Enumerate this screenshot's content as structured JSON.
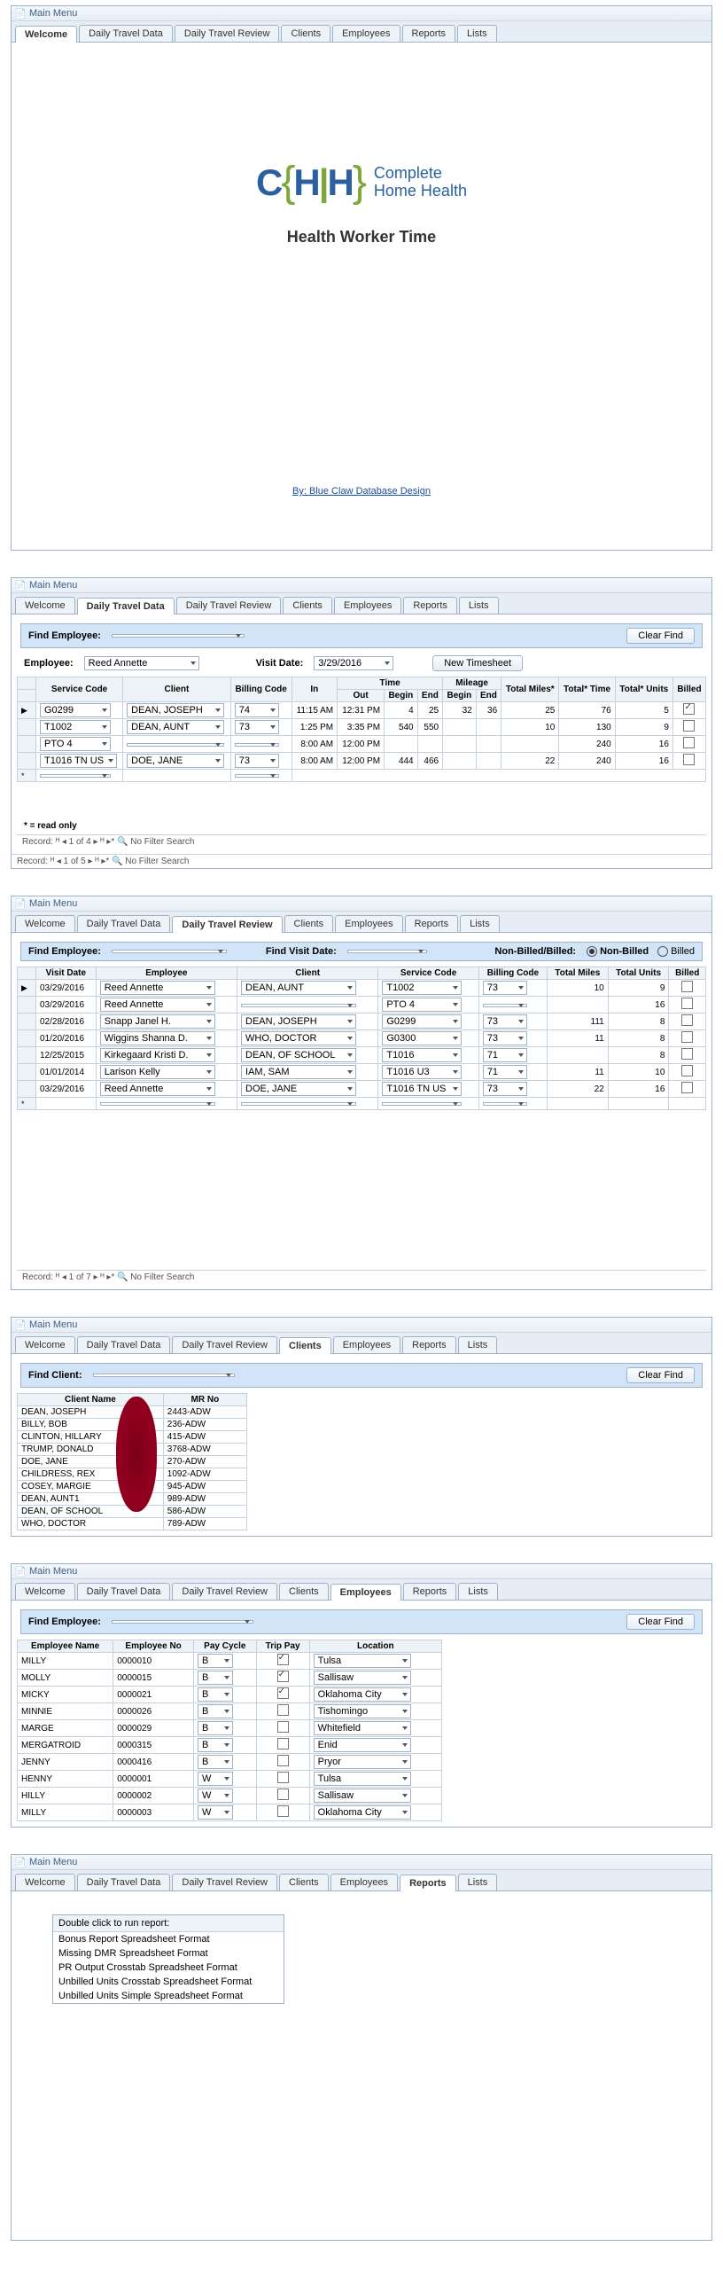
{
  "windowTitle": "Main Menu",
  "tabs": [
    "Welcome",
    "Daily Travel Data",
    "Daily Travel Review",
    "Clients",
    "Employees",
    "Reports",
    "Lists"
  ],
  "welcome": {
    "logoLetters": "CHH",
    "brand1": "Complete",
    "brand2": "Home Health",
    "appTitle": "Health Worker Time",
    "designLink": "By: Blue Claw Database Design"
  },
  "dtd": {
    "findLabel": "Find Employee:",
    "clearFind": "Clear Find",
    "empLabel": "Employee:",
    "employee": "Reed Annette",
    "visitDateLabel": "Visit Date:",
    "visitDate": "3/29/2016",
    "newTimesheet": "New Timesheet",
    "groupTime": "Time",
    "groupMileage": "Mileage",
    "cols": [
      "Service Code",
      "Client",
      "Billing Code",
      "In",
      "Out",
      "Begin",
      "End",
      "Begin",
      "End",
      "Total Miles*",
      "Total* Time",
      "Total* Units",
      "Billed"
    ],
    "rows": [
      {
        "sel": "▶",
        "svc": "G0299",
        "client": "DEAN, JOSEPH",
        "bill": "74",
        "in": "11:15 AM",
        "out": "12:31 PM",
        "tb": "4",
        "te": "25",
        "mb": "32",
        "me": "36",
        "miles": "25",
        "time": "76",
        "units": "5",
        "billed": true
      },
      {
        "sel": "",
        "svc": "T1002",
        "client": "DEAN, AUNT",
        "bill": "73",
        "in": "1:25 PM",
        "out": "3:35 PM",
        "tb": "540",
        "te": "550",
        "mb": "",
        "me": "",
        "miles": "10",
        "time": "130",
        "units": "9",
        "billed": false
      },
      {
        "sel": "",
        "svc": "PTO 4",
        "client": "",
        "bill": "",
        "in": "8:00 AM",
        "out": "12:00 PM",
        "tb": "",
        "te": "",
        "mb": "",
        "me": "",
        "miles": "",
        "time": "240",
        "units": "16",
        "billed": false
      },
      {
        "sel": "",
        "svc": "T1016 TN US",
        "client": "DOE, JANE",
        "bill": "73",
        "in": "8:00 AM",
        "out": "12:00 PM",
        "tb": "444",
        "te": "466",
        "mb": "",
        "me": "",
        "miles": "22",
        "time": "240",
        "units": "16",
        "billed": false
      }
    ],
    "readOnly": "* = read only",
    "nav1": "Record: ᴴ ◂ 1 of 4  ▸ ᴴ ▸*   🔍 No Filter   Search",
    "nav2": "Record: ᴴ ◂ 1 of 5  ▸ ᴴ ▸*   🔍 No Filter   Search"
  },
  "dtr": {
    "findEmp": "Find Employee:",
    "findVisit": "Find Visit Date:",
    "nbLabel": "Non-Billed/Billed:",
    "optNB": "Non-Billed",
    "optB": "Billed",
    "cols": [
      "Visit Date",
      "Employee",
      "Client",
      "Service Code",
      "Billing Code",
      "Total Miles",
      "Total Units",
      "Billed"
    ],
    "rows": [
      {
        "sel": "▶",
        "date": "03/29/2016",
        "emp": "Reed Annette",
        "client": "DEAN, AUNT",
        "svc": "T1002",
        "bc": "73",
        "miles": "10",
        "units": "9",
        "billed": false
      },
      {
        "sel": "",
        "date": "03/29/2016",
        "emp": "Reed Annette",
        "client": "",
        "svc": "PTO 4",
        "bc": "",
        "miles": "",
        "units": "16",
        "billed": false
      },
      {
        "sel": "",
        "date": "02/28/2016",
        "emp": "Snapp Janel H.",
        "client": "DEAN, JOSEPH",
        "svc": "G0299",
        "bc": "73",
        "miles": "111",
        "units": "8",
        "billed": false
      },
      {
        "sel": "",
        "date": "01/20/2016",
        "emp": "Wiggins Shanna D.",
        "client": "WHO, DOCTOR",
        "svc": "G0300",
        "bc": "73",
        "miles": "11",
        "units": "8",
        "billed": false
      },
      {
        "sel": "",
        "date": "12/25/2015",
        "emp": "Kirkegaard Kristi D.",
        "client": "DEAN, OF SCHOOL",
        "svc": "T1016",
        "bc": "71",
        "miles": "",
        "units": "8",
        "billed": false
      },
      {
        "sel": "",
        "date": "01/01/2014",
        "emp": "Larison Kelly",
        "client": "IAM, SAM",
        "svc": "T1016 U3",
        "bc": "71",
        "miles": "11",
        "units": "10",
        "billed": false
      },
      {
        "sel": "",
        "date": "03/29/2016",
        "emp": "Reed Annette",
        "client": "DOE, JANE",
        "svc": "T1016 TN US",
        "bc": "73",
        "miles": "22",
        "units": "16",
        "billed": false
      }
    ],
    "nav": "Record: ᴴ ◂ 1 of 7  ▸ ᴴ ▸*   🔍 No Filter   Search"
  },
  "clients": {
    "findLabel": "Find Client:",
    "clearFind": "Clear Find",
    "cols": [
      "Client Name",
      "MR No"
    ],
    "rows": [
      {
        "name": "DEAN, JOSEPH",
        "mr": "2443-ADW"
      },
      {
        "name": "BILLY, BOB",
        "mr": "236-ADW"
      },
      {
        "name": "CLINTON, HILLARY",
        "mr": "415-ADW"
      },
      {
        "name": "TRUMP, DONALD",
        "mr": "3768-ADW"
      },
      {
        "name": "DOE, JANE",
        "mr": "270-ADW"
      },
      {
        "name": "CHILDRESS, REX",
        "mr": "1092-ADW"
      },
      {
        "name": "COSEY, MARGIE",
        "mr": "945-ADW"
      },
      {
        "name": "DEAN, AUNT1",
        "mr": "989-ADW"
      },
      {
        "name": "DEAN, OF SCHOOL",
        "mr": "586-ADW"
      },
      {
        "name": "WHO, DOCTOR",
        "mr": "789-ADW"
      }
    ]
  },
  "employees": {
    "findLabel": "Find Employee:",
    "clearFind": "Clear Find",
    "cols": [
      "Employee Name",
      "Employee No",
      "Pay Cycle",
      "Trip Pay",
      "Location"
    ],
    "rows": [
      {
        "name": "MILLY",
        "no": "0000010",
        "cycle": "B",
        "trip": true,
        "loc": "Tulsa"
      },
      {
        "name": "MOLLY",
        "no": "0000015",
        "cycle": "B",
        "trip": true,
        "loc": "Sallisaw"
      },
      {
        "name": "MICKY",
        "no": "0000021",
        "cycle": "B",
        "trip": true,
        "loc": "Oklahoma City"
      },
      {
        "name": "MINNIE",
        "no": "0000026",
        "cycle": "B",
        "trip": false,
        "loc": "Tishomingo"
      },
      {
        "name": "MARGE",
        "no": "0000029",
        "cycle": "B",
        "trip": false,
        "loc": "Whitefield"
      },
      {
        "name": "MERGATROID",
        "no": "0000315",
        "cycle": "B",
        "trip": false,
        "loc": "Enid"
      },
      {
        "name": "JENNY",
        "no": "0000416",
        "cycle": "B",
        "trip": false,
        "loc": "Pryor"
      },
      {
        "name": "HENNY",
        "no": "0000001",
        "cycle": "W",
        "trip": false,
        "loc": "Tulsa"
      },
      {
        "name": "HILLY",
        "no": "0000002",
        "cycle": "W",
        "trip": false,
        "loc": "Sallisaw"
      },
      {
        "name": "MILLY",
        "no": "0000003",
        "cycle": "W",
        "trip": false,
        "loc": "Oklahoma City"
      }
    ]
  },
  "reports": {
    "header": "Double click to run report:",
    "items": [
      "Bonus Report Spreadsheet Format",
      "Missing DMR Spreadsheet Format",
      "PR Output Crosstab Spreadsheet Format",
      "Unbilled Units Crosstab  Spreadsheet Format",
      "Unbilled Units Simple  Spreadsheet Format"
    ]
  }
}
